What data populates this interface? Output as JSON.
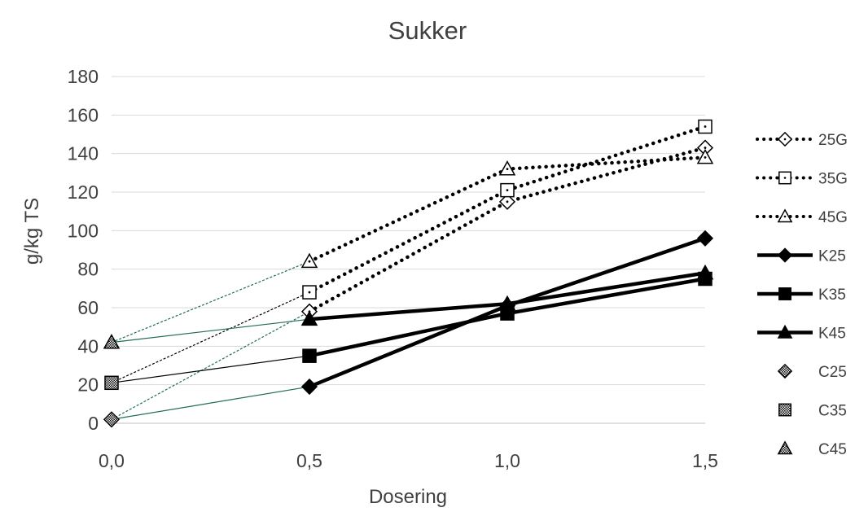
{
  "chart_data": {
    "type": "line",
    "title": "Sukker",
    "xlabel": "Dosering",
    "ylabel": "g/kg TS",
    "xlim": [
      0,
      1.5
    ],
    "ylim": [
      0,
      180
    ],
    "x_ticks": [
      "0,0",
      "0,5",
      "1,0",
      "1,5"
    ],
    "y_ticks": [
      "0",
      "20",
      "40",
      "60",
      "80",
      "100",
      "120",
      "140",
      "160",
      "180"
    ],
    "grid": true,
    "legend_position": "right",
    "series": [
      {
        "name": "25G",
        "style": "dotted",
        "marker": "diamond-open",
        "x": [
          0.5,
          1.0,
          1.5
        ],
        "values": [
          58,
          115,
          143
        ]
      },
      {
        "name": "35G",
        "style": "dotted",
        "marker": "square-open",
        "x": [
          0.5,
          1.0,
          1.5
        ],
        "values": [
          68,
          121,
          154
        ]
      },
      {
        "name": "45G",
        "style": "dotted",
        "marker": "triangle-open",
        "x": [
          0.5,
          1.0,
          1.5
        ],
        "values": [
          84,
          132,
          138
        ]
      },
      {
        "name": "K25",
        "style": "solid",
        "marker": "diamond-filled",
        "x": [
          0.5,
          1.0,
          1.5
        ],
        "values": [
          19,
          61,
          96
        ]
      },
      {
        "name": "K35",
        "style": "solid",
        "marker": "square-filled",
        "x": [
          0.5,
          1.0,
          1.5
        ],
        "values": [
          35,
          57,
          75
        ]
      },
      {
        "name": "K45",
        "style": "solid",
        "marker": "triangle-filled",
        "x": [
          0.5,
          1.0,
          1.5
        ],
        "values": [
          54,
          62,
          78
        ]
      },
      {
        "name": "C25",
        "style": "none",
        "marker": "diamond-pattern",
        "x": [
          0.0
        ],
        "values": [
          2
        ]
      },
      {
        "name": "C35",
        "style": "none",
        "marker": "square-pattern",
        "x": [
          0.0
        ],
        "values": [
          21
        ]
      },
      {
        "name": "C45",
        "style": "none",
        "marker": "triangle-pattern",
        "x": [
          0.0
        ],
        "values": [
          42
        ]
      }
    ],
    "connectors": [
      {
        "from": [
          0.0,
          2
        ],
        "to": [
          0.5,
          58
        ],
        "style": "dashed",
        "color": "#1f6b5a"
      },
      {
        "from": [
          0.0,
          21
        ],
        "to": [
          0.5,
          68
        ],
        "style": "dashed",
        "color": "#000000"
      },
      {
        "from": [
          0.0,
          42
        ],
        "to": [
          0.5,
          84
        ],
        "style": "dashed",
        "color": "#1f6b5a"
      },
      {
        "from": [
          0.0,
          2
        ],
        "to": [
          0.5,
          19
        ],
        "style": "solid",
        "color": "#1f6b5a"
      },
      {
        "from": [
          0.0,
          21
        ],
        "to": [
          0.5,
          35
        ],
        "style": "solid",
        "color": "#000000"
      },
      {
        "from": [
          0.0,
          42
        ],
        "to": [
          0.5,
          54
        ],
        "style": "solid",
        "color": "#1f6b5a"
      }
    ]
  }
}
